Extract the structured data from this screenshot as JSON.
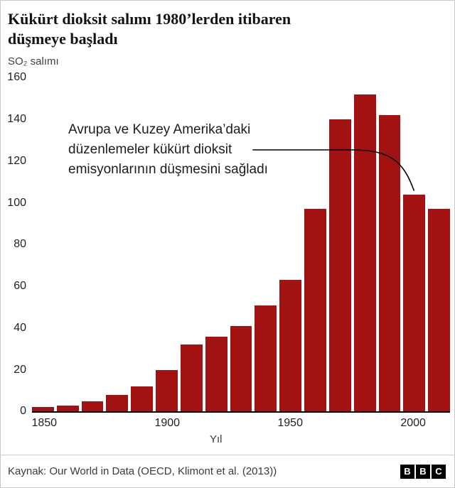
{
  "header": {
    "title": "Kükürt dioksit salımı 1980’lerden itibaren düşmeye başladı",
    "subtitle": "SO₂ salımı"
  },
  "annotation": {
    "lines": [
      "Avrupa ve Kuzey Amerika’daki",
      "düzenlemeler kükürt dioksit",
      "emisyonlarının düşmesini sağladı"
    ]
  },
  "chart_data": {
    "type": "bar",
    "title": "Kükürt dioksit salımı 1980’lerden itibaren düşmeye başladı",
    "x": [
      1850,
      1860,
      1870,
      1880,
      1890,
      1900,
      1910,
      1920,
      1930,
      1940,
      1950,
      1960,
      1970,
      1980,
      1990,
      2000,
      2010
    ],
    "values": [
      2,
      3,
      5,
      8,
      12,
      20,
      32,
      36,
      41,
      51,
      63,
      97,
      140,
      152,
      142,
      104,
      97
    ],
    "xlabel": "Yıl",
    "ylabel": "SO₂ salımı",
    "ylim": [
      0,
      160
    ],
    "yticks": [
      0,
      20,
      40,
      60,
      80,
      100,
      120,
      140,
      160
    ],
    "xticks": [
      1850,
      1900,
      1950,
      2000
    ],
    "bar_color": "#a21212",
    "grid": false,
    "legend": false
  },
  "footer": {
    "source": "Kaynak: Our World in Data (OECD, Klimont et al. (2013))",
    "logo_letters": [
      "B",
      "B",
      "C"
    ]
  }
}
